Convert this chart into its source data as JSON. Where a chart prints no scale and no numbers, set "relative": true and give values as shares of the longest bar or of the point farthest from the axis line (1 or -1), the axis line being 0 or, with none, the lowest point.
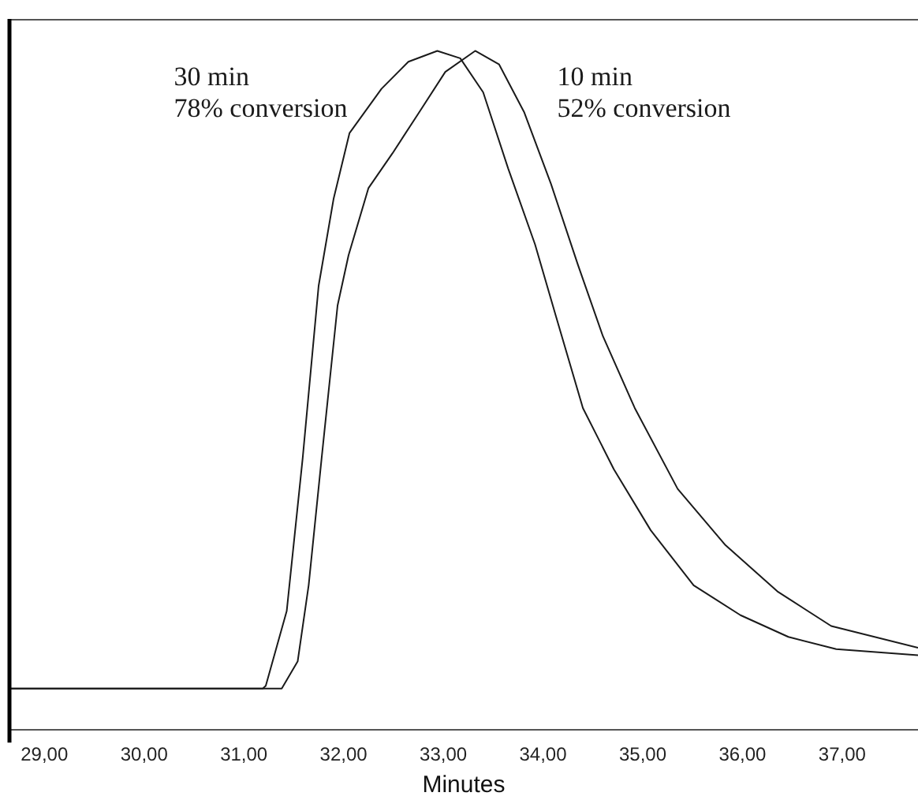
{
  "chart_data": {
    "type": "line",
    "xlabel": "Minutes",
    "relative": true,
    "tick_labels": "x",
    "grid": false,
    "legend": false,
    "marker": "none",
    "line_style": "solid",
    "xlim": [
      28.65,
      37.76
    ],
    "xticks": [
      {
        "value": 29,
        "label": "29,00"
      },
      {
        "value": 30,
        "label": "30,00"
      },
      {
        "value": 31,
        "label": "31,00"
      },
      {
        "value": 32,
        "label": "32,00"
      },
      {
        "value": 33,
        "label": "33,00"
      },
      {
        "value": 34,
        "label": "34,00"
      },
      {
        "value": 35,
        "label": "35,00"
      },
      {
        "value": 36,
        "label": "36,00"
      },
      {
        "value": 37,
        "label": "37,00"
      }
    ],
    "series": [
      {
        "name": "30 min\n78% conversion",
        "color": "#1a1a1a",
        "x": [
          28.65,
          31.19,
          31.22,
          31.43,
          31.59,
          31.75,
          31.9,
          32.06,
          32.38,
          32.65,
          32.94,
          33.17,
          33.4,
          33.65,
          33.92,
          34.13,
          34.4,
          34.71,
          35.08,
          35.51,
          35.98,
          36.46,
          36.94,
          37.76
        ],
        "values": [
          0.061,
          0.061,
          0.065,
          0.175,
          0.4,
          0.654,
          0.782,
          0.879,
          0.944,
          0.984,
          1.0,
          0.989,
          0.939,
          0.827,
          0.715,
          0.609,
          0.474,
          0.384,
          0.294,
          0.213,
          0.169,
          0.137,
          0.119,
          0.11
        ]
      },
      {
        "name": "10 min\n52% conversion",
        "color": "#1a1a1a",
        "x": [
          28.65,
          31.38,
          31.54,
          31.65,
          31.78,
          31.94,
          32.05,
          32.25,
          32.49,
          32.76,
          33.02,
          33.32,
          33.56,
          33.81,
          34.08,
          34.35,
          34.6,
          34.92,
          35.35,
          35.83,
          36.35,
          36.89,
          37.76
        ],
        "values": [
          0.061,
          0.061,
          0.101,
          0.213,
          0.4,
          0.625,
          0.699,
          0.798,
          0.849,
          0.91,
          0.969,
          1.0,
          0.98,
          0.91,
          0.804,
          0.685,
          0.58,
          0.474,
          0.355,
          0.272,
          0.204,
          0.153,
          0.121
        ]
      }
    ]
  }
}
